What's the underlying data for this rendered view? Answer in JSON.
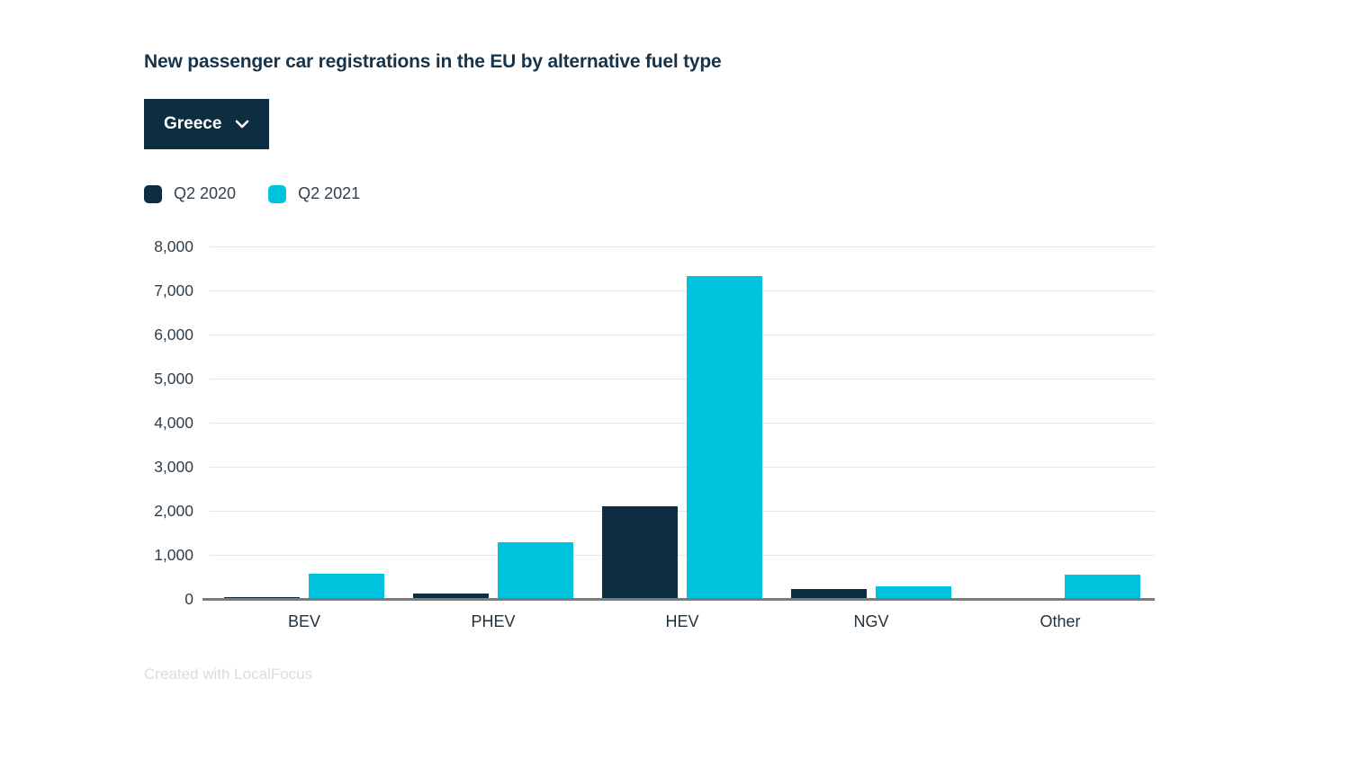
{
  "dropdown": {
    "selected": "Greece"
  },
  "footer": {
    "attribution": "Created with LocalFocus"
  },
  "colors": {
    "q2_2020": "#0d2d40",
    "q2_2021": "#00c3dd",
    "title_text": "#17344a",
    "axis_text": "#2d3e4a",
    "gridline": "#e7e7e7",
    "axis_line": "#7b7b7b"
  },
  "chart_data": {
    "type": "bar",
    "title": "New passenger car registrations in the EU by alternative fuel type",
    "categories": [
      "BEV",
      "PHEV",
      "HEV",
      "NGV",
      "Other"
    ],
    "series": [
      {
        "name": "Q2 2020",
        "color": "#0d2d40",
        "values": [
          30,
          120,
          2100,
          230,
          0
        ]
      },
      {
        "name": "Q2 2021",
        "color": "#00c3dd",
        "values": [
          570,
          1280,
          7320,
          280,
          550
        ]
      }
    ],
    "xlabel": "",
    "ylabel": "",
    "ylim": [
      0,
      8000
    ],
    "y_tick_step": 1000,
    "y_ticks": [
      "0",
      "1,000",
      "2,000",
      "3,000",
      "4,000",
      "5,000",
      "6,000",
      "7,000",
      "8,000"
    ],
    "grid": "horizontal",
    "legend_position": "top-left"
  }
}
